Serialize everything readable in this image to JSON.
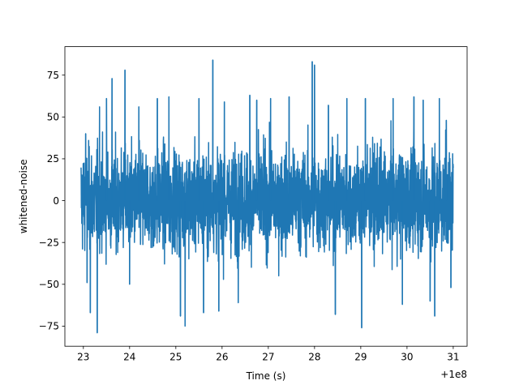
{
  "chart_data": {
    "type": "line",
    "title": "",
    "xlabel": "Time (s)",
    "ylabel": "whitened-noise",
    "x_offset_label": "+1e8",
    "xlim": [
      22.6,
      31.3
    ],
    "ylim": [
      -87,
      92
    ],
    "x_ticks": [
      23,
      24,
      25,
      26,
      27,
      28,
      29,
      30,
      31
    ],
    "x_tick_labels": [
      "23",
      "24",
      "25",
      "26",
      "27",
      "28",
      "29",
      "30",
      "31"
    ],
    "y_ticks": [
      -75,
      -50,
      -25,
      0,
      25,
      50,
      75
    ],
    "y_tick_labels": [
      "−75",
      "−50",
      "−25",
      "0",
      "25",
      "50",
      "75"
    ],
    "grid": false,
    "series": [
      {
        "color": "#1f77b4",
        "x_range": [
          22.95,
          31.0
        ],
        "spikes": [
          {
            "x": 23.05,
            "y": 40
          },
          {
            "x": 23.08,
            "y": -49
          },
          {
            "x": 23.15,
            "y": -67
          },
          {
            "x": 23.3,
            "y": -79
          },
          {
            "x": 23.35,
            "y": 56
          },
          {
            "x": 23.5,
            "y": 61
          },
          {
            "x": 23.62,
            "y": 73
          },
          {
            "x": 23.9,
            "y": 78
          },
          {
            "x": 24.0,
            "y": -50
          },
          {
            "x": 24.2,
            "y": 56
          },
          {
            "x": 24.6,
            "y": 61
          },
          {
            "x": 24.85,
            "y": 62
          },
          {
            "x": 25.1,
            "y": -69
          },
          {
            "x": 25.2,
            "y": -75
          },
          {
            "x": 25.5,
            "y": 61
          },
          {
            "x": 25.6,
            "y": -67
          },
          {
            "x": 25.8,
            "y": 84
          },
          {
            "x": 25.93,
            "y": -66
          },
          {
            "x": 26.05,
            "y": 59
          },
          {
            "x": 26.35,
            "y": -61
          },
          {
            "x": 26.6,
            "y": 63
          },
          {
            "x": 26.75,
            "y": 60
          },
          {
            "x": 27.05,
            "y": 61
          },
          {
            "x": 27.45,
            "y": 62
          },
          {
            "x": 27.95,
            "y": 83
          },
          {
            "x": 28.0,
            "y": 81
          },
          {
            "x": 28.3,
            "y": 57
          },
          {
            "x": 28.45,
            "y": -68
          },
          {
            "x": 28.7,
            "y": 61
          },
          {
            "x": 29.02,
            "y": -76
          },
          {
            "x": 29.1,
            "y": 61
          },
          {
            "x": 29.7,
            "y": 61
          },
          {
            "x": 29.9,
            "y": -62
          },
          {
            "x": 30.15,
            "y": 62
          },
          {
            "x": 30.35,
            "y": 60
          },
          {
            "x": 30.5,
            "y": -60
          },
          {
            "x": 30.6,
            "y": -69
          },
          {
            "x": 30.7,
            "y": 61
          },
          {
            "x": 30.85,
            "y": 48
          },
          {
            "x": 30.95,
            "y": -52
          }
        ]
      }
    ]
  }
}
